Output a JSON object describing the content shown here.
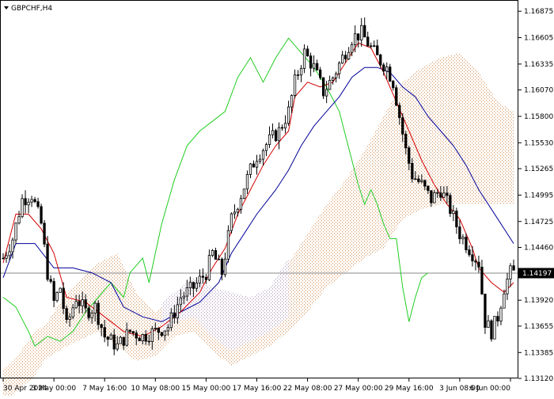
{
  "chart_data": {
    "type": "candlestick",
    "symbol_label": "GBPCHF,H4",
    "current_price": {
      "value": 1.14197,
      "label": "1.14197"
    },
    "colors": {
      "candle_up": "#ffffff",
      "candle_down": "#000000",
      "tenkan": "#d40000",
      "kijun": "#000099",
      "chikou": "#22cc22",
      "kumo_bull": "#d9a070",
      "kumo_bear": "#b8a8c8",
      "price_line": "#888888"
    },
    "y_axis": {
      "min": 1.1312,
      "max": 1.1699,
      "ticks": [
        {
          "value": 1.16875,
          "label": "1.16875"
        },
        {
          "value": 1.16605,
          "label": "1.16605"
        },
        {
          "value": 1.16335,
          "label": "1.16335"
        },
        {
          "value": 1.1607,
          "label": "1.16070"
        },
        {
          "value": 1.158,
          "label": "1.15800"
        },
        {
          "value": 1.1553,
          "label": "1.15530"
        },
        {
          "value": 1.15265,
          "label": "1.15265"
        },
        {
          "value": 1.14995,
          "label": "1.14995"
        },
        {
          "value": 1.14725,
          "label": "1.14725"
        },
        {
          "value": 1.1446,
          "label": "1.14460"
        },
        {
          "value": 1.1419,
          "label": ""
        },
        {
          "value": 1.1392,
          "label": "1.13920"
        },
        {
          "value": 1.13655,
          "label": "1.13655"
        },
        {
          "value": 1.13385,
          "label": "1.13385"
        },
        {
          "value": 1.1312,
          "label": "1.13120"
        }
      ]
    },
    "x_axis": {
      "bars": 162,
      "ticks": [
        {
          "bar": 0,
          "label": "30 Apr 2024"
        },
        {
          "bar": 16,
          "label": "3 May 00:00"
        },
        {
          "bar": 32,
          "label": "7 May 16:00"
        },
        {
          "bar": 48,
          "label": "10 May 08:00"
        },
        {
          "bar": 64,
          "label": "15 May 00:00"
        },
        {
          "bar": 80,
          "label": "17 May 16:00"
        },
        {
          "bar": 96,
          "label": "22 May 08:00"
        },
        {
          "bar": 112,
          "label": "27 May 00:00"
        },
        {
          "bar": 128,
          "label": "29 May 16:00"
        },
        {
          "bar": 144,
          "label": "3 Jun 08:00"
        },
        {
          "bar": 160,
          "label": "6 Jun 00:00"
        }
      ]
    },
    "price_path": [
      [
        0,
        1.1435
      ],
      [
        3,
        1.1455
      ],
      [
        6,
        1.1495
      ],
      [
        9,
        1.15
      ],
      [
        12,
        1.147
      ],
      [
        14,
        1.142
      ],
      [
        16,
        1.139
      ],
      [
        18,
        1.1405
      ],
      [
        20,
        1.1365
      ],
      [
        23,
        1.1395
      ],
      [
        26,
        1.138
      ],
      [
        29,
        1.1385
      ],
      [
        32,
        1.1355
      ],
      [
        36,
        1.1345
      ],
      [
        40,
        1.136
      ],
      [
        44,
        1.1355
      ],
      [
        48,
        1.136
      ],
      [
        52,
        1.1365
      ],
      [
        56,
        1.1395
      ],
      [
        60,
        1.1405
      ],
      [
        64,
        1.142
      ],
      [
        66,
        1.144
      ],
      [
        69,
        1.142
      ],
      [
        72,
        1.1475
      ],
      [
        75,
        1.15
      ],
      [
        78,
        1.1525
      ],
      [
        80,
        1.154
      ],
      [
        84,
        1.1555
      ],
      [
        87,
        1.1565
      ],
      [
        90,
        1.1585
      ],
      [
        92,
        1.1615
      ],
      [
        95,
        1.1645
      ],
      [
        98,
        1.163
      ],
      [
        101,
        1.1605
      ],
      [
        104,
        1.162
      ],
      [
        107,
        1.164
      ],
      [
        110,
        1.166
      ],
      [
        113,
        1.1665
      ],
      [
        115,
        1.1655
      ],
      [
        118,
        1.164
      ],
      [
        121,
        1.163
      ],
      [
        123,
        1.1615
      ],
      [
        125,
        1.158
      ],
      [
        127,
        1.1545
      ],
      [
        129,
        1.152
      ],
      [
        132,
        1.151
      ],
      [
        135,
        1.1495
      ],
      [
        138,
        1.1505
      ],
      [
        141,
        1.1485
      ],
      [
        144,
        1.146
      ],
      [
        147,
        1.1445
      ],
      [
        150,
        1.143
      ],
      [
        151,
        1.14
      ],
      [
        152,
        1.137
      ],
      [
        154,
        1.136
      ],
      [
        156,
        1.1375
      ],
      [
        158,
        1.1405
      ],
      [
        160,
        1.142
      ],
      [
        161,
        1.142
      ]
    ],
    "tenkan_path": [
      [
        0,
        1.143
      ],
      [
        4,
        1.148
      ],
      [
        8,
        1.148
      ],
      [
        12,
        1.1465
      ],
      [
        16,
        1.144
      ],
      [
        20,
        1.1395
      ],
      [
        26,
        1.139
      ],
      [
        32,
        1.1375
      ],
      [
        38,
        1.136
      ],
      [
        44,
        1.1355
      ],
      [
        50,
        1.1365
      ],
      [
        56,
        1.138
      ],
      [
        62,
        1.14
      ],
      [
        66,
        1.1425
      ],
      [
        70,
        1.1445
      ],
      [
        74,
        1.148
      ],
      [
        78,
        1.1505
      ],
      [
        82,
        1.153
      ],
      [
        86,
        1.155
      ],
      [
        90,
        1.1565
      ],
      [
        92,
        1.16
      ],
      [
        96,
        1.1615
      ],
      [
        100,
        1.161
      ],
      [
        104,
        1.1615
      ],
      [
        108,
        1.1635
      ],
      [
        112,
        1.1655
      ],
      [
        116,
        1.165
      ],
      [
        120,
        1.1625
      ],
      [
        124,
        1.1595
      ],
      [
        128,
        1.1565
      ],
      [
        132,
        1.1535
      ],
      [
        136,
        1.151
      ],
      [
        140,
        1.149
      ],
      [
        144,
        1.1475
      ],
      [
        148,
        1.1445
      ],
      [
        150,
        1.1425
      ],
      [
        154,
        1.141
      ],
      [
        158,
        1.14
      ],
      [
        161,
        1.141
      ]
    ],
    "kijun_path": [
      [
        0,
        1.1415
      ],
      [
        4,
        1.145
      ],
      [
        10,
        1.145
      ],
      [
        16,
        1.1425
      ],
      [
        22,
        1.1425
      ],
      [
        28,
        1.142
      ],
      [
        34,
        1.141
      ],
      [
        38,
        1.1385
      ],
      [
        44,
        1.1375
      ],
      [
        50,
        1.137
      ],
      [
        56,
        1.138
      ],
      [
        62,
        1.139
      ],
      [
        68,
        1.141
      ],
      [
        72,
        1.144
      ],
      [
        76,
        1.146
      ],
      [
        80,
        1.148
      ],
      [
        86,
        1.1505
      ],
      [
        90,
        1.1525
      ],
      [
        94,
        1.155
      ],
      [
        98,
        1.157
      ],
      [
        102,
        1.1585
      ],
      [
        106,
        1.16
      ],
      [
        110,
        1.162
      ],
      [
        114,
        1.163
      ],
      [
        118,
        1.163
      ],
      [
        122,
        1.1625
      ],
      [
        126,
        1.161
      ],
      [
        130,
        1.16
      ],
      [
        134,
        1.158
      ],
      [
        138,
        1.1565
      ],
      [
        142,
        1.155
      ],
      [
        146,
        1.153
      ],
      [
        150,
        1.1505
      ],
      [
        154,
        1.1485
      ],
      [
        158,
        1.1465
      ],
      [
        161,
        1.145
      ]
    ],
    "chikou_path": [
      [
        0,
        1.1395
      ],
      [
        4,
        1.1385
      ],
      [
        8,
        1.136
      ],
      [
        10,
        1.1345
      ],
      [
        14,
        1.1355
      ],
      [
        18,
        1.135
      ],
      [
        22,
        1.136
      ],
      [
        26,
        1.138
      ],
      [
        30,
        1.1395
      ],
      [
        34,
        1.141
      ],
      [
        38,
        1.1395
      ],
      [
        40,
        1.142
      ],
      [
        44,
        1.1435
      ],
      [
        46,
        1.141
      ],
      [
        50,
        1.147
      ],
      [
        54,
        1.1515
      ],
      [
        58,
        1.155
      ],
      [
        62,
        1.1565
      ],
      [
        66,
        1.1575
      ],
      [
        70,
        1.1585
      ],
      [
        74,
        1.162
      ],
      [
        78,
        1.164
      ],
      [
        82,
        1.1615
      ],
      [
        86,
        1.164
      ],
      [
        90,
        1.166
      ],
      [
        94,
        1.1645
      ],
      [
        98,
        1.163
      ],
      [
        102,
        1.161
      ],
      [
        106,
        1.1585
      ],
      [
        108,
        1.156
      ],
      [
        110,
        1.1535
      ],
      [
        112,
        1.151
      ],
      [
        114,
        1.149
      ],
      [
        116,
        1.1505
      ],
      [
        118,
        1.149
      ],
      [
        120,
        1.147
      ],
      [
        122,
        1.1455
      ],
      [
        124,
        1.1455
      ],
      [
        126,
        1.1405
      ],
      [
        128,
        1.137
      ],
      [
        130,
        1.1395
      ],
      [
        132,
        1.1415
      ],
      [
        134,
        1.142
      ]
    ],
    "kumo_span_a": [
      [
        0,
        1.132
      ],
      [
        10,
        1.135
      ],
      [
        20,
        1.14
      ],
      [
        30,
        1.143
      ],
      [
        36,
        1.144
      ],
      [
        42,
        1.14
      ],
      [
        48,
        1.138
      ],
      [
        54,
        1.1395
      ],
      [
        60,
        1.141
      ],
      [
        66,
        1.14
      ],
      [
        72,
        1.1395
      ],
      [
        78,
        1.139
      ],
      [
        84,
        1.14
      ],
      [
        90,
        1.143
      ],
      [
        96,
        1.146
      ],
      [
        102,
        1.149
      ],
      [
        108,
        1.1515
      ],
      [
        114,
        1.1545
      ],
      [
        120,
        1.158
      ],
      [
        126,
        1.1615
      ],
      [
        132,
        1.163
      ],
      [
        138,
        1.164
      ],
      [
        144,
        1.1645
      ],
      [
        150,
        1.1625
      ],
      [
        156,
        1.1595
      ],
      [
        161,
        1.1585
      ]
    ],
    "kumo_span_b": [
      [
        0,
        1.1315
      ],
      [
        10,
        1.136
      ],
      [
        20,
        1.138
      ],
      [
        30,
        1.1395
      ],
      [
        36,
        1.138
      ],
      [
        42,
        1.1365
      ],
      [
        48,
        1.137
      ],
      [
        54,
        1.139
      ],
      [
        60,
        1.1395
      ],
      [
        66,
        1.1375
      ],
      [
        72,
        1.136
      ],
      [
        78,
        1.137
      ],
      [
        84,
        1.138
      ],
      [
        90,
        1.1395
      ],
      [
        96,
        1.1415
      ],
      [
        102,
        1.144
      ],
      [
        108,
        1.1455
      ],
      [
        114,
        1.147
      ],
      [
        120,
        1.148
      ],
      [
        126,
        1.151
      ],
      [
        132,
        1.152
      ],
      [
        138,
        1.1525
      ],
      [
        144,
        1.1525
      ],
      [
        150,
        1.1525
      ],
      [
        156,
        1.1525
      ],
      [
        161,
        1.1525
      ]
    ],
    "bear_cloud_range": [
      50,
      90
    ]
  }
}
